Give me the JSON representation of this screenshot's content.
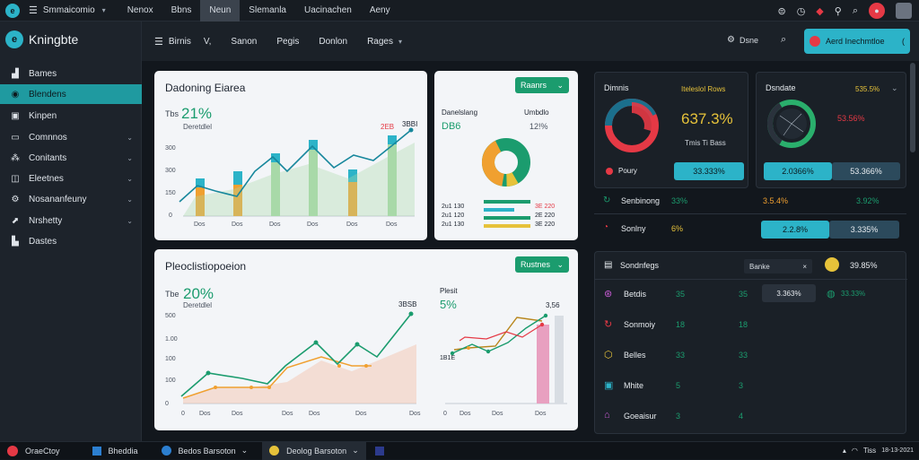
{
  "topbar": {
    "app_name": "Smmaicomio",
    "tabs": [
      "Nenox",
      "Bbns",
      "Neun",
      "Slemanla",
      "Uacinachen",
      "Aeny"
    ],
    "active_tab": 2
  },
  "brand": {
    "name": "Kningbte"
  },
  "sidebar": {
    "items": [
      {
        "label": "Bames",
        "icon": "chart-icon",
        "chevron": false
      },
      {
        "label": "Blendens",
        "icon": "circle-icon",
        "chevron": false,
        "active": true
      },
      {
        "label": "Kinpen",
        "icon": "box-icon",
        "chevron": false
      },
      {
        "label": "Comnnos",
        "icon": "card-icon",
        "chevron": true
      },
      {
        "label": "Conitants",
        "icon": "nodes-icon",
        "chevron": true
      },
      {
        "label": "Eleetnes",
        "icon": "layers-icon",
        "chevron": true
      },
      {
        "label": "Nosananfeuny",
        "icon": "settings-icon",
        "chevron": true
      },
      {
        "label": "Nrshetty",
        "icon": "trend-icon",
        "chevron": true
      },
      {
        "label": "Dastes",
        "icon": "bars-icon",
        "chevron": false
      }
    ]
  },
  "header": {
    "items": [
      "Birnis",
      "Sanon",
      "Pegis",
      "Donlon",
      "Rages"
    ],
    "chevron_after_first": "V,",
    "right_label": "Dsne",
    "action_button": "Aerd Inechmtloe"
  },
  "panel1": {
    "title": "Dadoning Eiarea",
    "button": "Raanrs",
    "chart": {
      "kpi_label": "Tbs",
      "kpi_value": "21%",
      "kpi_sub": "Deretdlel",
      "peak_label": "2EB",
      "peak_value": "3BBI"
    },
    "donut": {
      "title": "Danelslang",
      "value": "DB6",
      "right_label": "12!%",
      "side_label": "Umbdlo",
      "legend_left": [
        "2u1 130",
        "2u1 120",
        "2u1 130"
      ],
      "legend_right": [
        "3E 220",
        "2E 220",
        "3E 220"
      ]
    }
  },
  "panel2": {
    "title": "Pleoclistiopoeion",
    "button": "Rustnes",
    "chart": {
      "kpi_label": "Tbe",
      "kpi_value": "20%",
      "kpi_sub": "Deretdlel",
      "end_value": "3BSB"
    },
    "right": {
      "label": "Plesit",
      "value": "5%",
      "top_value": "3,56",
      "left_value": "1B1E"
    }
  },
  "dark1": {
    "title": "Dimnis",
    "sub_label": "Iteleslol Rows",
    "value": "637.3%",
    "sub_value": "Tmis Ti Bass",
    "legend": "Poury",
    "bar": "33.333%"
  },
  "dark2": {
    "title": "Dsndate",
    "right_label": "535.5%",
    "right_value": "53.56%",
    "bar1": "2.0366%",
    "bar2": "53.366%"
  },
  "metrics_rows": [
    {
      "label": "Senbinong",
      "v1": "33%",
      "v2": "3.5.4%",
      "v3": "3.92%"
    },
    {
      "label": "Sonlny",
      "v1": "6%",
      "bar1": "2.2.8%",
      "bar2": "3.335%"
    }
  ],
  "table": {
    "title": "Sondnfegs",
    "dropdown": "Banke",
    "right_value": "39.85%",
    "rows": [
      {
        "icon": "alert-icon",
        "label": "Betdis",
        "a": "35",
        "b": "35",
        "bar": "3.363%",
        "extra": "33.33%"
      },
      {
        "icon": "sync-icon",
        "label": "Sonmoiy",
        "a": "18",
        "b": "18"
      },
      {
        "icon": "box-icon",
        "label": "Belles",
        "a": "33",
        "b": "33"
      },
      {
        "icon": "tag-icon",
        "label": "Mhite",
        "a": "5",
        "b": "3"
      },
      {
        "icon": "trash-icon",
        "label": "Goeaisur",
        "a": "3",
        "b": "4"
      }
    ]
  },
  "taskbar": {
    "items": [
      {
        "label": "OraeCtoy",
        "icon": "app-icon"
      },
      {
        "label": "Bheddia",
        "icon": "window-icon"
      },
      {
        "label": "Bedos Barsoton",
        "icon": "browser-icon"
      },
      {
        "label": "Deolog Barsoton",
        "icon": "chrome-icon",
        "active": true
      }
    ],
    "clock_time": "Tiss",
    "clock_date": "18-13-2021"
  },
  "colors": {
    "teal": "#1f9aa0",
    "green": "#1b9c6e",
    "cyan": "#2cb3c8",
    "red": "#e53945",
    "orange": "#f0a030",
    "yellow": "#e6c23a",
    "pink": "#e8a0c0"
  }
}
